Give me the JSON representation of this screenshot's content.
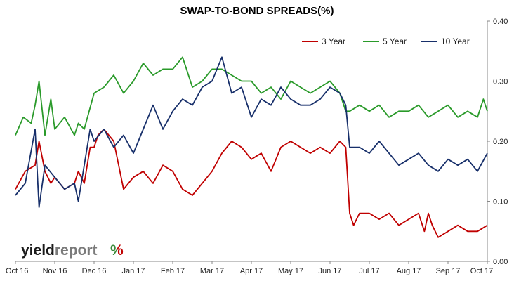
{
  "colors": {
    "series_3y": "#c00000",
    "series_5y": "#2a9a2a",
    "series_10y": "#172f6a",
    "axis": "#888888",
    "logo_accent_green": "#3a8a3a",
    "logo_accent_red": "#c00000"
  },
  "logo": {
    "part1": "yield",
    "part2": "report",
    "symbol": "%"
  },
  "chart_data": {
    "type": "line",
    "title": "SWAP-TO-BOND SPREADS(%)",
    "xlabel": "",
    "ylabel": "",
    "x_tick_labels": [
      "Oct 16",
      "Nov 16",
      "Dec 16",
      "Jan 17",
      "Feb 17",
      "Mar 17",
      "Apr 17",
      "May 17",
      "Jun 17",
      "Jul 17",
      "Aug 17",
      "Sep 17",
      "Oct 17"
    ],
    "x_tick_positions": [
      0,
      1,
      2,
      3,
      4,
      5,
      6,
      7,
      8,
      9,
      10,
      11,
      12
    ],
    "xlim": [
      0,
      12
    ],
    "y_axis_side": "right",
    "ylim": [
      0,
      0.4
    ],
    "y_ticks": [
      "0.00",
      "0.10",
      "0.20",
      "0.30",
      "0.40"
    ],
    "y_tick_values": [
      0,
      0.1,
      0.2,
      0.3,
      0.4
    ],
    "grid": false,
    "legend_position": "top-right",
    "series": [
      {
        "name": "3 Year",
        "x": [
          0,
          0.25,
          0.5,
          0.6,
          0.75,
          0.9,
          1.0,
          1.25,
          1.5,
          1.6,
          1.75,
          1.9,
          2.0,
          2.1,
          2.25,
          2.5,
          2.75,
          3.0,
          3.25,
          3.5,
          3.75,
          4.0,
          4.25,
          4.5,
          4.75,
          5.0,
          5.25,
          5.5,
          5.75,
          6.0,
          6.25,
          6.5,
          6.75,
          7.0,
          7.25,
          7.5,
          7.75,
          8.0,
          8.25,
          8.4,
          8.5,
          8.6,
          8.75,
          9.0,
          9.25,
          9.5,
          9.75,
          10.0,
          10.25,
          10.4,
          10.5,
          10.6,
          10.75,
          11.0,
          11.25,
          11.5,
          11.75,
          12.0
        ],
        "values": [
          0.12,
          0.15,
          0.16,
          0.2,
          0.15,
          0.13,
          0.14,
          0.12,
          0.13,
          0.15,
          0.13,
          0.19,
          0.19,
          0.21,
          0.22,
          0.2,
          0.12,
          0.14,
          0.15,
          0.13,
          0.16,
          0.15,
          0.12,
          0.11,
          0.13,
          0.15,
          0.18,
          0.2,
          0.19,
          0.17,
          0.18,
          0.15,
          0.19,
          0.2,
          0.19,
          0.18,
          0.19,
          0.18,
          0.2,
          0.19,
          0.08,
          0.06,
          0.08,
          0.08,
          0.07,
          0.08,
          0.06,
          0.07,
          0.08,
          0.05,
          0.08,
          0.06,
          0.04,
          0.05,
          0.06,
          0.05,
          0.05,
          0.06
        ]
      },
      {
        "name": "5 Year",
        "x": [
          0,
          0.2,
          0.4,
          0.5,
          0.6,
          0.75,
          0.9,
          1.0,
          1.25,
          1.5,
          1.6,
          1.75,
          2.0,
          2.25,
          2.5,
          2.75,
          3.0,
          3.25,
          3.5,
          3.75,
          4.0,
          4.25,
          4.5,
          4.75,
          5.0,
          5.25,
          5.5,
          5.75,
          6.0,
          6.25,
          6.5,
          6.75,
          7.0,
          7.25,
          7.5,
          7.75,
          8.0,
          8.25,
          8.4,
          8.5,
          8.75,
          9.0,
          9.25,
          9.5,
          9.75,
          10.0,
          10.25,
          10.5,
          10.75,
          11.0,
          11.25,
          11.5,
          11.75,
          11.9,
          12.0
        ],
        "values": [
          0.21,
          0.24,
          0.23,
          0.26,
          0.3,
          0.21,
          0.27,
          0.22,
          0.24,
          0.21,
          0.23,
          0.22,
          0.28,
          0.29,
          0.31,
          0.28,
          0.3,
          0.33,
          0.31,
          0.32,
          0.32,
          0.34,
          0.29,
          0.3,
          0.32,
          0.32,
          0.31,
          0.3,
          0.3,
          0.28,
          0.29,
          0.27,
          0.3,
          0.29,
          0.28,
          0.29,
          0.3,
          0.28,
          0.25,
          0.25,
          0.26,
          0.25,
          0.26,
          0.24,
          0.25,
          0.25,
          0.26,
          0.24,
          0.25,
          0.26,
          0.24,
          0.25,
          0.24,
          0.27,
          0.25
        ]
      },
      {
        "name": "10 Year",
        "x": [
          0,
          0.25,
          0.5,
          0.6,
          0.75,
          1.0,
          1.25,
          1.5,
          1.6,
          1.75,
          1.9,
          2.0,
          2.25,
          2.5,
          2.75,
          3.0,
          3.25,
          3.5,
          3.75,
          4.0,
          4.25,
          4.5,
          4.75,
          5.0,
          5.25,
          5.5,
          5.75,
          6.0,
          6.25,
          6.5,
          6.75,
          7.0,
          7.25,
          7.5,
          7.75,
          8.0,
          8.25,
          8.4,
          8.5,
          8.75,
          9.0,
          9.25,
          9.5,
          9.75,
          10.0,
          10.25,
          10.5,
          10.75,
          11.0,
          11.25,
          11.5,
          11.75,
          12.0
        ],
        "values": [
          0.11,
          0.13,
          0.22,
          0.09,
          0.16,
          0.14,
          0.12,
          0.13,
          0.1,
          0.16,
          0.22,
          0.2,
          0.22,
          0.19,
          0.21,
          0.18,
          0.22,
          0.26,
          0.22,
          0.25,
          0.27,
          0.26,
          0.29,
          0.3,
          0.34,
          0.28,
          0.29,
          0.24,
          0.27,
          0.26,
          0.29,
          0.27,
          0.26,
          0.26,
          0.27,
          0.29,
          0.28,
          0.26,
          0.19,
          0.19,
          0.18,
          0.2,
          0.18,
          0.16,
          0.17,
          0.18,
          0.16,
          0.15,
          0.17,
          0.16,
          0.17,
          0.15,
          0.18
        ]
      }
    ]
  }
}
